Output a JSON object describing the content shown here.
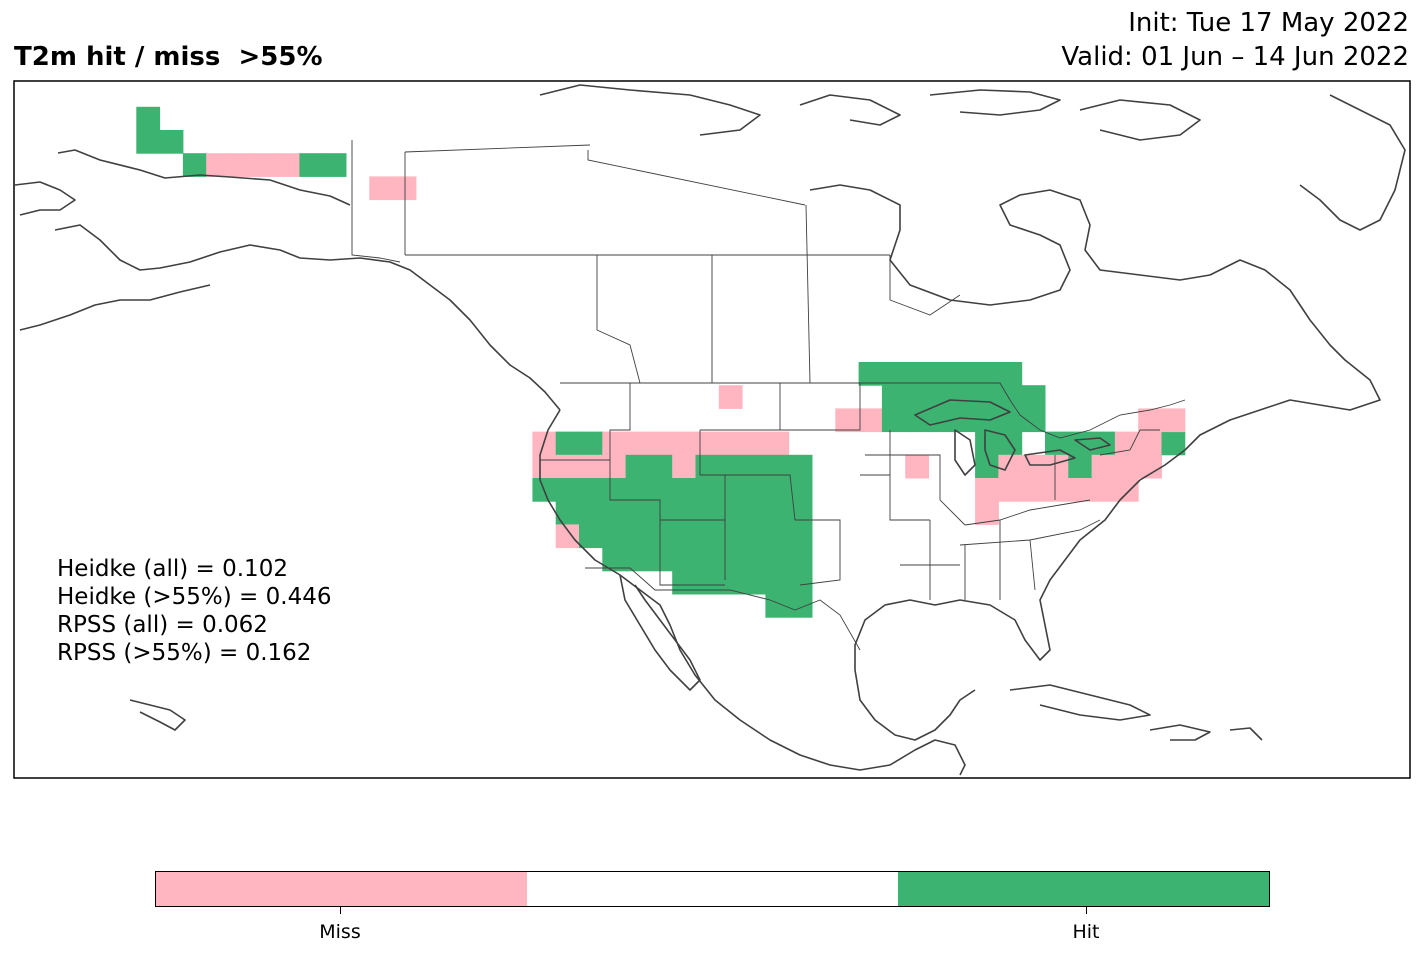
{
  "header": {
    "title": "T2m hit / miss  >55%",
    "init": "Init: Tue 17 May 2022",
    "valid": "Valid: 01 Jun – 14 Jun 2022"
  },
  "scores": {
    "heidke_all": "Heidke (all) = 0.102",
    "heidke_55": "Heidke (>55%) = 0.446",
    "rpss_all": "RPSS (all) = 0.062",
    "rpss_55": "RPSS (>55%) = 0.162"
  },
  "legend": {
    "miss_label": "Miss",
    "hit_label": "Hit",
    "colors": {
      "miss": "#ffb6c1",
      "neutral": "#ffffff",
      "hit": "#3cb371"
    }
  },
  "map": {
    "region": "North America",
    "land_color": "#ffffff",
    "coast_color": "#404040",
    "cell_degrees": 2,
    "grid_cells": [
      {
        "lat": 71,
        "lon": -157,
        "status": "hit"
      },
      {
        "lat": 69,
        "lon": -157,
        "status": "hit"
      },
      {
        "lat": 69,
        "lon": -155,
        "status": "hit"
      },
      {
        "lat": 67,
        "lon": -153,
        "status": "hit"
      },
      {
        "lat": 67,
        "lon": -151,
        "status": "miss"
      },
      {
        "lat": 67,
        "lon": -149,
        "status": "miss"
      },
      {
        "lat": 67,
        "lon": -147,
        "status": "miss"
      },
      {
        "lat": 67,
        "lon": -145,
        "status": "miss"
      },
      {
        "lat": 67,
        "lon": -143,
        "status": "hit"
      },
      {
        "lat": 67,
        "lon": -141,
        "status": "hit"
      },
      {
        "lat": 65,
        "lon": -137,
        "status": "miss"
      },
      {
        "lat": 65,
        "lon": -135,
        "status": "miss"
      },
      {
        "lat": 49,
        "lon": -95,
        "status": "hit"
      },
      {
        "lat": 49,
        "lon": -93,
        "status": "hit"
      },
      {
        "lat": 49,
        "lon": -91,
        "status": "hit"
      },
      {
        "lat": 49,
        "lon": -89,
        "status": "hit"
      },
      {
        "lat": 49,
        "lon": -87,
        "status": "hit"
      },
      {
        "lat": 49,
        "lon": -85,
        "status": "hit"
      },
      {
        "lat": 49,
        "lon": -83,
        "status": "hit"
      },
      {
        "lat": 47,
        "lon": -93,
        "status": "hit"
      },
      {
        "lat": 47,
        "lon": -91,
        "status": "hit"
      },
      {
        "lat": 47,
        "lon": -89,
        "status": "hit"
      },
      {
        "lat": 47,
        "lon": -87,
        "status": "hit"
      },
      {
        "lat": 47,
        "lon": -85,
        "status": "hit"
      },
      {
        "lat": 47,
        "lon": -83,
        "status": "hit"
      },
      {
        "lat": 47,
        "lon": -81,
        "status": "hit"
      },
      {
        "lat": 47,
        "lon": -107,
        "status": "miss"
      },
      {
        "lat": 45,
        "lon": -97,
        "status": "miss"
      },
      {
        "lat": 45,
        "lon": -95,
        "status": "miss"
      },
      {
        "lat": 45,
        "lon": -93,
        "status": "hit"
      },
      {
        "lat": 45,
        "lon": -91,
        "status": "hit"
      },
      {
        "lat": 45,
        "lon": -89,
        "status": "hit"
      },
      {
        "lat": 45,
        "lon": -87,
        "status": "hit"
      },
      {
        "lat": 45,
        "lon": -85,
        "status": "hit"
      },
      {
        "lat": 45,
        "lon": -83,
        "status": "hit"
      },
      {
        "lat": 45,
        "lon": -81,
        "status": "hit"
      },
      {
        "lat": 43,
        "lon": -123,
        "status": "miss"
      },
      {
        "lat": 43,
        "lon": -121,
        "status": "hit"
      },
      {
        "lat": 43,
        "lon": -119,
        "status": "hit"
      },
      {
        "lat": 43,
        "lon": -117,
        "status": "miss"
      },
      {
        "lat": 43,
        "lon": -115,
        "status": "miss"
      },
      {
        "lat": 43,
        "lon": -113,
        "status": "miss"
      },
      {
        "lat": 43,
        "lon": -111,
        "status": "miss"
      },
      {
        "lat": 43,
        "lon": -109,
        "status": "miss"
      },
      {
        "lat": 43,
        "lon": -107,
        "status": "miss"
      },
      {
        "lat": 43,
        "lon": -105,
        "status": "miss"
      },
      {
        "lat": 43,
        "lon": -103,
        "status": "miss"
      },
      {
        "lat": 43,
        "lon": -85,
        "status": "hit"
      },
      {
        "lat": 43,
        "lon": -83,
        "status": "hit"
      },
      {
        "lat": 43,
        "lon": -79,
        "status": "hit"
      },
      {
        "lat": 43,
        "lon": -77,
        "status": "hit"
      },
      {
        "lat": 43,
        "lon": -75,
        "status": "hit"
      },
      {
        "lat": 43,
        "lon": -73,
        "status": "miss"
      },
      {
        "lat": 43,
        "lon": -71,
        "status": "miss"
      },
      {
        "lat": 43,
        "lon": -69,
        "status": "hit"
      },
      {
        "lat": 45,
        "lon": -71,
        "status": "miss"
      },
      {
        "lat": 45,
        "lon": -69,
        "status": "miss"
      },
      {
        "lat": 41,
        "lon": -123,
        "status": "miss"
      },
      {
        "lat": 41,
        "lon": -121,
        "status": "miss"
      },
      {
        "lat": 41,
        "lon": -119,
        "status": "miss"
      },
      {
        "lat": 41,
        "lon": -117,
        "status": "miss"
      },
      {
        "lat": 41,
        "lon": -115,
        "status": "hit"
      },
      {
        "lat": 41,
        "lon": -113,
        "status": "hit"
      },
      {
        "lat": 41,
        "lon": -111,
        "status": "miss"
      },
      {
        "lat": 41,
        "lon": -109,
        "status": "hit"
      },
      {
        "lat": 41,
        "lon": -107,
        "status": "hit"
      },
      {
        "lat": 41,
        "lon": -105,
        "status": "hit"
      },
      {
        "lat": 41,
        "lon": -103,
        "status": "hit"
      },
      {
        "lat": 41,
        "lon": -101,
        "status": "hit"
      },
      {
        "lat": 41,
        "lon": -91,
        "status": "miss"
      },
      {
        "lat": 41,
        "lon": -85,
        "status": "hit"
      },
      {
        "lat": 41,
        "lon": -83,
        "status": "miss"
      },
      {
        "lat": 41,
        "lon": -81,
        "status": "miss"
      },
      {
        "lat": 41,
        "lon": -79,
        "status": "miss"
      },
      {
        "lat": 41,
        "lon": -77,
        "status": "hit"
      },
      {
        "lat": 41,
        "lon": -75,
        "status": "miss"
      },
      {
        "lat": 41,
        "lon": -73,
        "status": "miss"
      },
      {
        "lat": 41,
        "lon": -71,
        "status": "miss"
      },
      {
        "lat": 39,
        "lon": -123,
        "status": "hit"
      },
      {
        "lat": 39,
        "lon": -121,
        "status": "hit"
      },
      {
        "lat": 39,
        "lon": -119,
        "status": "hit"
      },
      {
        "lat": 39,
        "lon": -117,
        "status": "hit"
      },
      {
        "lat": 39,
        "lon": -115,
        "status": "hit"
      },
      {
        "lat": 39,
        "lon": -113,
        "status": "hit"
      },
      {
        "lat": 39,
        "lon": -111,
        "status": "hit"
      },
      {
        "lat": 39,
        "lon": -109,
        "status": "hit"
      },
      {
        "lat": 39,
        "lon": -107,
        "status": "hit"
      },
      {
        "lat": 39,
        "lon": -105,
        "status": "hit"
      },
      {
        "lat": 39,
        "lon": -103,
        "status": "hit"
      },
      {
        "lat": 39,
        "lon": -101,
        "status": "hit"
      },
      {
        "lat": 39,
        "lon": -85,
        "status": "miss"
      },
      {
        "lat": 39,
        "lon": -83,
        "status": "miss"
      },
      {
        "lat": 39,
        "lon": -81,
        "status": "miss"
      },
      {
        "lat": 39,
        "lon": -79,
        "status": "miss"
      },
      {
        "lat": 39,
        "lon": -77,
        "status": "miss"
      },
      {
        "lat": 39,
        "lon": -75,
        "status": "miss"
      },
      {
        "lat": 39,
        "lon": -73,
        "status": "miss"
      },
      {
        "lat": 37,
        "lon": -121,
        "status": "hit"
      },
      {
        "lat": 37,
        "lon": -119,
        "status": "hit"
      },
      {
        "lat": 37,
        "lon": -117,
        "status": "hit"
      },
      {
        "lat": 37,
        "lon": -115,
        "status": "hit"
      },
      {
        "lat": 37,
        "lon": -113,
        "status": "hit"
      },
      {
        "lat": 37,
        "lon": -111,
        "status": "hit"
      },
      {
        "lat": 37,
        "lon": -109,
        "status": "hit"
      },
      {
        "lat": 37,
        "lon": -107,
        "status": "hit"
      },
      {
        "lat": 37,
        "lon": -105,
        "status": "hit"
      },
      {
        "lat": 37,
        "lon": -103,
        "status": "hit"
      },
      {
        "lat": 37,
        "lon": -101,
        "status": "hit"
      },
      {
        "lat": 37,
        "lon": -85,
        "status": "miss"
      },
      {
        "lat": 35,
        "lon": -121,
        "status": "miss"
      },
      {
        "lat": 35,
        "lon": -119,
        "status": "hit"
      },
      {
        "lat": 35,
        "lon": -117,
        "status": "hit"
      },
      {
        "lat": 35,
        "lon": -115,
        "status": "hit"
      },
      {
        "lat": 35,
        "lon": -113,
        "status": "hit"
      },
      {
        "lat": 35,
        "lon": -111,
        "status": "hit"
      },
      {
        "lat": 35,
        "lon": -109,
        "status": "hit"
      },
      {
        "lat": 35,
        "lon": -107,
        "status": "hit"
      },
      {
        "lat": 35,
        "lon": -105,
        "status": "hit"
      },
      {
        "lat": 35,
        "lon": -103,
        "status": "hit"
      },
      {
        "lat": 35,
        "lon": -101,
        "status": "hit"
      },
      {
        "lat": 33,
        "lon": -117,
        "status": "hit"
      },
      {
        "lat": 33,
        "lon": -115,
        "status": "hit"
      },
      {
        "lat": 33,
        "lon": -113,
        "status": "hit"
      },
      {
        "lat": 33,
        "lon": -111,
        "status": "hit"
      },
      {
        "lat": 33,
        "lon": -109,
        "status": "hit"
      },
      {
        "lat": 33,
        "lon": -107,
        "status": "hit"
      },
      {
        "lat": 33,
        "lon": -105,
        "status": "hit"
      },
      {
        "lat": 33,
        "lon": -103,
        "status": "hit"
      },
      {
        "lat": 33,
        "lon": -101,
        "status": "hit"
      },
      {
        "lat": 31,
        "lon": -111,
        "status": "hit"
      },
      {
        "lat": 31,
        "lon": -109,
        "status": "hit"
      },
      {
        "lat": 31,
        "lon": -107,
        "status": "hit"
      },
      {
        "lat": 31,
        "lon": -105,
        "status": "hit"
      },
      {
        "lat": 31,
        "lon": -103,
        "status": "hit"
      },
      {
        "lat": 31,
        "lon": -101,
        "status": "hit"
      },
      {
        "lat": 29,
        "lon": -103,
        "status": "hit"
      },
      {
        "lat": 29,
        "lon": -101,
        "status": "hit"
      }
    ]
  }
}
